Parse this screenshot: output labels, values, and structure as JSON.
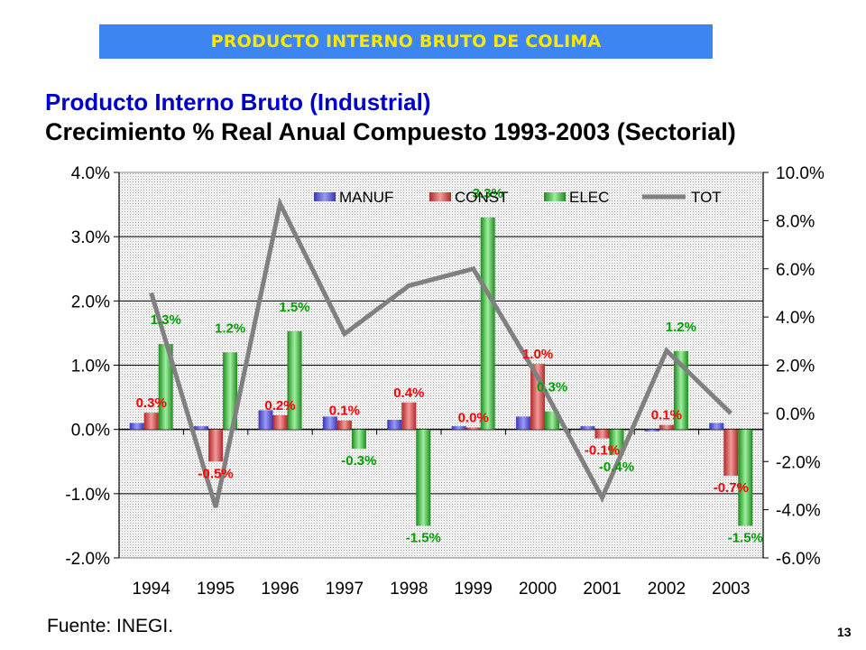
{
  "banner": {
    "title": "PRODUCTO INTERNO BRUTO DE COLIMA"
  },
  "chart_data": {
    "type": "bar+line",
    "title": "Producto Interno Bruto (Industrial)",
    "subtitle": "Crecimiento % Real Anual Compuesto 1993-2003 (Sectorial)",
    "categories": [
      "1994",
      "1995",
      "1996",
      "1997",
      "1998",
      "1999",
      "2000",
      "2001",
      "2002",
      "2003"
    ],
    "series": [
      {
        "name": "MANUF",
        "axis": "left",
        "color": "#6e6eea",
        "values": [
          0.1,
          0.05,
          0.3,
          0.2,
          0.15,
          0.05,
          0.2,
          0.05,
          -0.03,
          0.1
        ],
        "labels": []
      },
      {
        "name": "CONST",
        "axis": "left",
        "color": "#e06060",
        "values": [
          0.26,
          -0.5,
          0.22,
          0.14,
          0.42,
          0.03,
          1.02,
          -0.14,
          0.07,
          -0.72
        ],
        "labels": [
          "0.3%",
          "-0.5%",
          "0.2%",
          "0.1%",
          "0.4%",
          "0.0%",
          "1.0%",
          "-0.1%",
          "0.1%",
          "-0.7%"
        ],
        "label_color": "#ff0000"
      },
      {
        "name": "ELEC",
        "axis": "left",
        "color": "#5cc85c",
        "values": [
          1.33,
          1.2,
          1.53,
          -0.3,
          -1.5,
          3.3,
          0.28,
          -0.4,
          1.22,
          -1.5
        ],
        "labels": [
          "1.3%",
          "1.2%",
          "1.5%",
          "-0.3%",
          "-1.5%",
          "3.3%",
          "0.3%",
          "-0.4%",
          "1.2%",
          "-1.5%"
        ],
        "label_color": "#00a000"
      },
      {
        "name": "TOT",
        "axis": "right",
        "type": "line",
        "color": "#808080",
        "values": [
          5.0,
          -3.9,
          8.7,
          3.3,
          5.3,
          6.0,
          1.5,
          -3.5,
          2.6,
          0.0
        ]
      }
    ],
    "ylim_left": [
      -2.0,
      4.0
    ],
    "yticks_left": [
      "4.0%",
      "3.0%",
      "2.0%",
      "1.0%",
      "0.0%",
      "-1.0%",
      "-2.0%"
    ],
    "ylim_right": [
      -6.0,
      10.0
    ],
    "yticks_right": [
      "10.0%",
      "8.0%",
      "6.0%",
      "4.0%",
      "2.0%",
      "0.0%",
      "-2.0%",
      "-4.0%",
      "-6.0%"
    ],
    "legend": [
      "MANUF",
      "CONST",
      "ELEC",
      "TOT"
    ],
    "legend_position": "top",
    "grid": true
  },
  "footer": {
    "source": "Fuente: INEGI.",
    "page": "13"
  }
}
